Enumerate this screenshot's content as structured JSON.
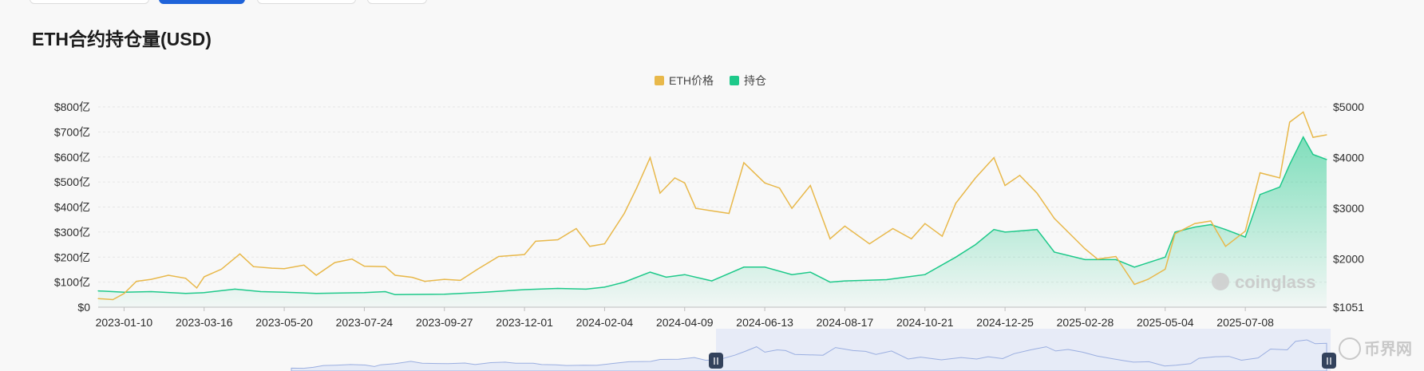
{
  "header": {
    "title": "ETH合约持仓量(USD)",
    "tabs": [
      {
        "label": "",
        "active": false
      },
      {
        "label": "",
        "active": true
      },
      {
        "label": "",
        "active": false
      },
      {
        "label": "",
        "active": false
      }
    ]
  },
  "chart_data": {
    "type": "line",
    "title": "ETH合约持仓量(USD)",
    "x_ticks": [
      "2023-01-10",
      "2023-03-16",
      "2023-05-20",
      "2023-07-24",
      "2023-09-27",
      "2023-12-01",
      "2024-02-04",
      "2024-04-09",
      "2024-06-13",
      "2024-08-17",
      "2024-10-21",
      "2024-12-25",
      "2025-02-28",
      "2025-05-04",
      "2025-07-08"
    ],
    "x_range": [
      "2022-12-20",
      "2025-09-12"
    ],
    "left_axis": {
      "ticks": [
        "$0",
        "$100亿",
        "$200亿",
        "$300亿",
        "$400亿",
        "$500亿",
        "$600亿",
        "$700亿",
        "$800亿"
      ],
      "range": [
        0,
        800
      ],
      "unit": "亿 USD"
    },
    "right_axis": {
      "ticks": [
        "$1051",
        "$2000",
        "$3000",
        "$4000",
        "$5000"
      ],
      "range": [
        1051,
        5000
      ],
      "unit": "USD"
    },
    "legend": {
      "position": "top-center",
      "items": [
        {
          "name": "ETH价格",
          "color": "#e8b84a"
        },
        {
          "name": "持仓",
          "color": "#1ec98a"
        }
      ]
    },
    "grid": true,
    "series": [
      {
        "name": "ETH价格",
        "axis": "right",
        "color": "#e8b84a",
        "points": [
          [
            "2022-12-20",
            1220
          ],
          [
            "2023-01-01",
            1200
          ],
          [
            "2023-01-10",
            1320
          ],
          [
            "2023-01-20",
            1560
          ],
          [
            "2023-02-01",
            1600
          ],
          [
            "2023-02-15",
            1680
          ],
          [
            "2023-03-01",
            1620
          ],
          [
            "2023-03-10",
            1430
          ],
          [
            "2023-03-16",
            1650
          ],
          [
            "2023-03-30",
            1800
          ],
          [
            "2023-04-14",
            2100
          ],
          [
            "2023-04-25",
            1850
          ],
          [
            "2023-05-10",
            1820
          ],
          [
            "2023-05-20",
            1810
          ],
          [
            "2023-06-05",
            1880
          ],
          [
            "2023-06-15",
            1680
          ],
          [
            "2023-06-30",
            1930
          ],
          [
            "2023-07-14",
            2000
          ],
          [
            "2023-07-24",
            1860
          ],
          [
            "2023-08-10",
            1850
          ],
          [
            "2023-08-18",
            1680
          ],
          [
            "2023-09-01",
            1640
          ],
          [
            "2023-09-11",
            1560
          ],
          [
            "2023-09-27",
            1600
          ],
          [
            "2023-10-10",
            1580
          ],
          [
            "2023-10-24",
            1800
          ],
          [
            "2023-11-10",
            2050
          ],
          [
            "2023-12-01",
            2090
          ],
          [
            "2023-12-10",
            2350
          ],
          [
            "2023-12-28",
            2380
          ],
          [
            "2024-01-12",
            2600
          ],
          [
            "2024-01-23",
            2250
          ],
          [
            "2024-02-04",
            2300
          ],
          [
            "2024-02-20",
            2900
          ],
          [
            "2024-03-01",
            3400
          ],
          [
            "2024-03-12",
            4000
          ],
          [
            "2024-03-20",
            3300
          ],
          [
            "2024-04-01",
            3600
          ],
          [
            "2024-04-09",
            3500
          ],
          [
            "2024-04-18",
            3000
          ],
          [
            "2024-05-01",
            2950
          ],
          [
            "2024-05-15",
            2900
          ],
          [
            "2024-05-27",
            3900
          ],
          [
            "2024-06-13",
            3500
          ],
          [
            "2024-06-25",
            3400
          ],
          [
            "2024-07-05",
            3000
          ],
          [
            "2024-07-20",
            3450
          ],
          [
            "2024-08-05",
            2400
          ],
          [
            "2024-08-17",
            2650
          ],
          [
            "2024-09-06",
            2300
          ],
          [
            "2024-09-25",
            2600
          ],
          [
            "2024-10-10",
            2400
          ],
          [
            "2024-10-21",
            2700
          ],
          [
            "2024-11-04",
            2450
          ],
          [
            "2024-11-15",
            3100
          ],
          [
            "2024-12-01",
            3600
          ],
          [
            "2024-12-16",
            4000
          ],
          [
            "2024-12-25",
            3450
          ],
          [
            "2025-01-06",
            3650
          ],
          [
            "2025-01-20",
            3300
          ],
          [
            "2025-02-03",
            2800
          ],
          [
            "2025-02-28",
            2200
          ],
          [
            "2025-03-10",
            2000
          ],
          [
            "2025-03-25",
            2050
          ],
          [
            "2025-04-09",
            1500
          ],
          [
            "2025-04-20",
            1600
          ],
          [
            "2025-05-04",
            1800
          ],
          [
            "2025-05-12",
            2500
          ],
          [
            "2025-05-28",
            2700
          ],
          [
            "2025-06-10",
            2750
          ],
          [
            "2025-06-22",
            2250
          ],
          [
            "2025-07-08",
            2550
          ],
          [
            "2025-07-20",
            3700
          ],
          [
            "2025-08-05",
            3600
          ],
          [
            "2025-08-13",
            4700
          ],
          [
            "2025-08-24",
            4900
          ],
          [
            "2025-09-01",
            4400
          ],
          [
            "2025-09-12",
            4450
          ]
        ]
      },
      {
        "name": "持仓",
        "axis": "left",
        "color": "#1ec98a",
        "points": [
          [
            "2022-12-20",
            65
          ],
          [
            "2023-01-10",
            60
          ],
          [
            "2023-02-01",
            62
          ],
          [
            "2023-03-01",
            55
          ],
          [
            "2023-03-16",
            58
          ],
          [
            "2023-04-10",
            72
          ],
          [
            "2023-05-01",
            62
          ],
          [
            "2023-05-20",
            60
          ],
          [
            "2023-06-15",
            55
          ],
          [
            "2023-07-24",
            58
          ],
          [
            "2023-08-10",
            62
          ],
          [
            "2023-08-18",
            50
          ],
          [
            "2023-09-27",
            52
          ],
          [
            "2023-10-30",
            60
          ],
          [
            "2023-12-01",
            70
          ],
          [
            "2023-12-28",
            75
          ],
          [
            "2024-01-20",
            72
          ],
          [
            "2024-02-04",
            80
          ],
          [
            "2024-02-20",
            100
          ],
          [
            "2024-03-12",
            140
          ],
          [
            "2024-03-25",
            120
          ],
          [
            "2024-04-09",
            130
          ],
          [
            "2024-05-01",
            105
          ],
          [
            "2024-05-27",
            160
          ],
          [
            "2024-06-13",
            160
          ],
          [
            "2024-07-05",
            130
          ],
          [
            "2024-07-20",
            140
          ],
          [
            "2024-08-05",
            100
          ],
          [
            "2024-08-17",
            105
          ],
          [
            "2024-09-20",
            110
          ],
          [
            "2024-10-21",
            130
          ],
          [
            "2024-11-15",
            200
          ],
          [
            "2024-12-01",
            250
          ],
          [
            "2024-12-16",
            310
          ],
          [
            "2024-12-25",
            300
          ],
          [
            "2025-01-20",
            310
          ],
          [
            "2025-02-03",
            220
          ],
          [
            "2025-02-28",
            190
          ],
          [
            "2025-03-25",
            190
          ],
          [
            "2025-04-09",
            160
          ],
          [
            "2025-05-04",
            200
          ],
          [
            "2025-05-12",
            300
          ],
          [
            "2025-05-28",
            320
          ],
          [
            "2025-06-10",
            330
          ],
          [
            "2025-06-22",
            310
          ],
          [
            "2025-07-08",
            280
          ],
          [
            "2025-07-20",
            450
          ],
          [
            "2025-08-05",
            480
          ],
          [
            "2025-08-13",
            570
          ],
          [
            "2025-08-24",
            680
          ],
          [
            "2025-09-01",
            610
          ],
          [
            "2025-09-12",
            590
          ]
        ]
      }
    ]
  },
  "watermark": {
    "brand": "coinglass",
    "site": "币界网"
  }
}
